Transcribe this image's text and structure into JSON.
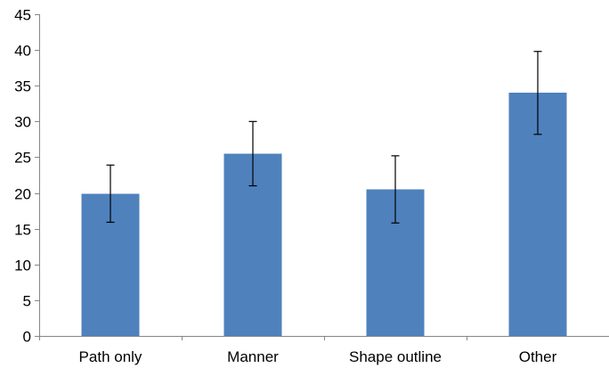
{
  "chart_data": {
    "type": "bar",
    "title": "",
    "xlabel": "",
    "ylabel": "",
    "categories": [
      "Path only",
      "Manner",
      "Shape outline",
      "Other"
    ],
    "values": [
      19.9,
      25.5,
      20.5,
      34.0
    ],
    "error_bars": {
      "lower": [
        15.9,
        21.0,
        15.8,
        28.2
      ],
      "upper": [
        23.9,
        30.0,
        25.2,
        39.8
      ]
    },
    "ylim": [
      0,
      45
    ],
    "yticks": [
      0,
      5,
      10,
      15,
      20,
      25,
      30,
      35,
      40,
      45
    ],
    "bar_color": "#4f81bd",
    "grid": false,
    "legend": "none"
  }
}
